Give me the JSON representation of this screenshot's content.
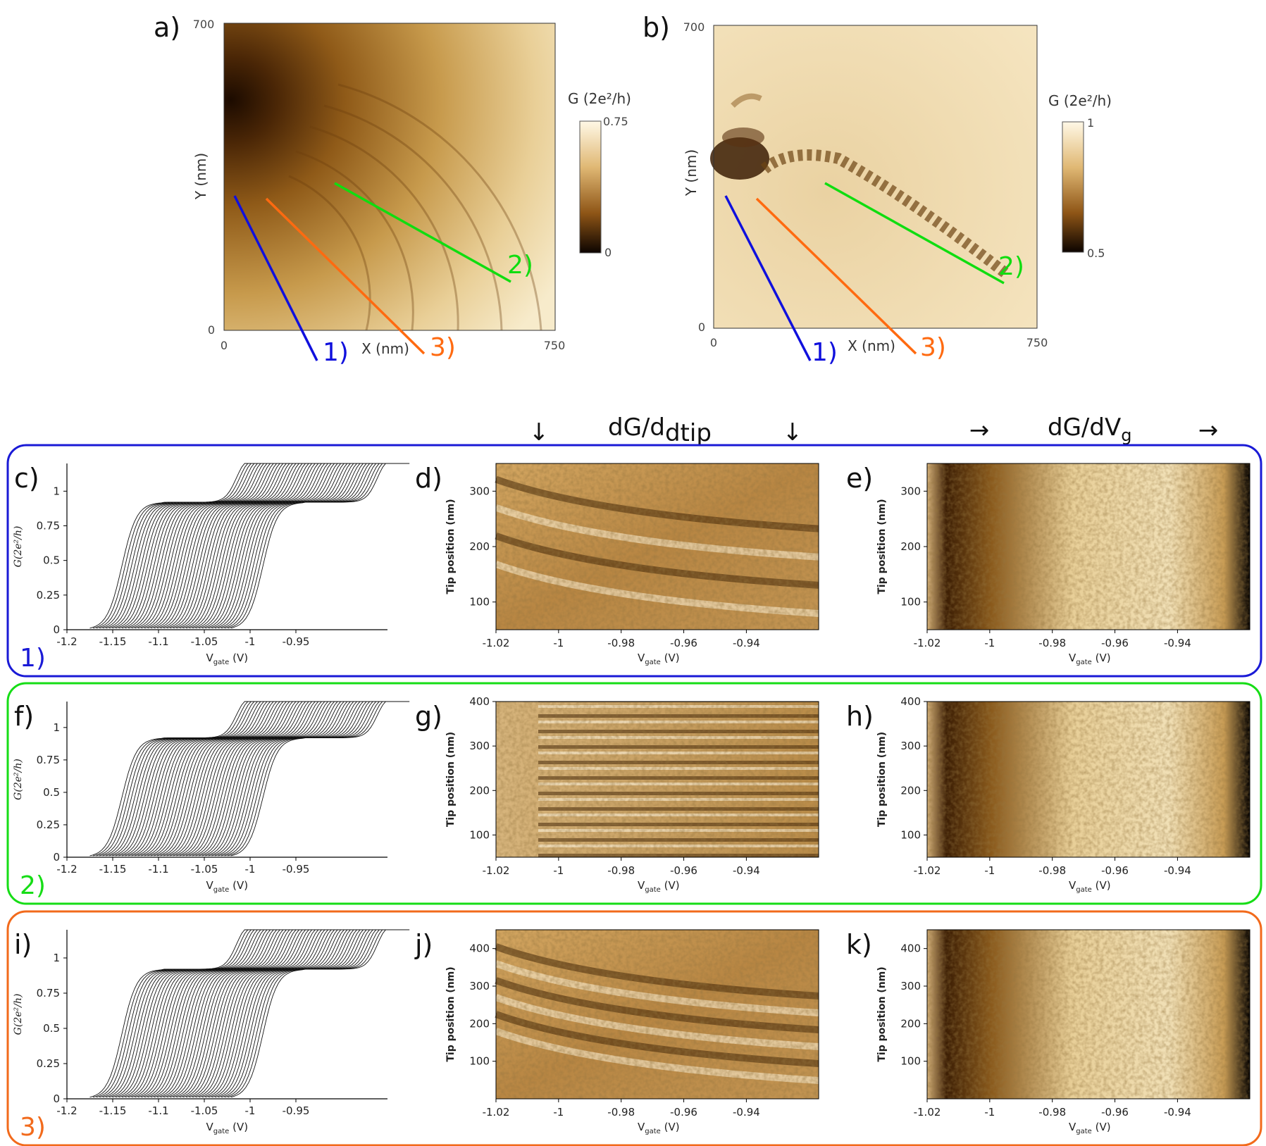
{
  "figure": {
    "map_panels": [
      {
        "letter": "a)",
        "x_label": "X (nm)",
        "y_label": "Y (nm)",
        "x_ticks": [
          "0",
          "750"
        ],
        "y_ticks": [
          "0",
          "700"
        ],
        "colorbar": {
          "title": "G (2e²/h)",
          "max": "0.75",
          "min": "0"
        },
        "lines": [
          {
            "label": "1)",
            "color": "#1010dd"
          },
          {
            "label": "2)",
            "color": "#10dd10"
          },
          {
            "label": "3)",
            "color": "#ff6a10"
          }
        ]
      },
      {
        "letter": "b)",
        "x_label": "X (nm)",
        "y_label": "Y (nm)",
        "x_ticks": [
          "0",
          "750"
        ],
        "y_ticks": [
          "0",
          "700"
        ],
        "colorbar": {
          "title": "G (2e²/h)",
          "max": "1",
          "min": "0.5"
        },
        "lines": [
          {
            "label": "1)",
            "color": "#1010dd"
          },
          {
            "label": "2)",
            "color": "#10dd10"
          },
          {
            "label": "3)",
            "color": "#ff6a10"
          }
        ]
      }
    ],
    "column_headers": {
      "derivative_tip": {
        "main": "dG/d",
        "sub": "dtip",
        "arrow": "↓"
      },
      "derivative_gate": {
        "main": "dG/dV",
        "sub": "g",
        "arrow": "→"
      }
    },
    "rows": [
      {
        "id": "1)",
        "color": "#1a1ad6",
        "curves": {
          "letter": "c)",
          "y_label": "G(2e²/h)",
          "x_label": "V",
          "x_label_sub": "gate",
          "x_unit": "(V)",
          "x_ticks": [
            "-1.2",
            "-1.15",
            "-1.1",
            "-1.05",
            "-1",
            "-0.95"
          ],
          "y_ticks": [
            "0",
            "0.25",
            "0.5",
            "0.75",
            "1"
          ]
        },
        "tip_map": {
          "letter": "d)",
          "y_label": "Tip position (nm)",
          "x_label": "V",
          "x_label_sub": "gate",
          "x_unit": "(V)",
          "x_ticks": [
            "-1.02",
            "-1",
            "-0.98",
            "-0.96",
            "-0.94"
          ],
          "y_ticks": [
            "100",
            "200",
            "300"
          ]
        },
        "gate_map": {
          "letter": "e)",
          "y_label": "Tip position (nm)",
          "x_label": "V",
          "x_label_sub": "gate",
          "x_unit": "(V)",
          "x_ticks": [
            "-1.02",
            "-1",
            "-0.98",
            "-0.96",
            "-0.94"
          ],
          "y_ticks": [
            "100",
            "200",
            "300"
          ]
        }
      },
      {
        "id": "2)",
        "color": "#16dd16",
        "curves": {
          "letter": "f)",
          "y_label": "G(2e²/h)",
          "x_label": "V",
          "x_label_sub": "gate",
          "x_unit": "(V)",
          "x_ticks": [
            "-1.2",
            "-1.15",
            "-1.1",
            "-1.05",
            "-1",
            "-0.95"
          ],
          "y_ticks": [
            "0",
            "0.25",
            "0.5",
            "0.75",
            "1"
          ]
        },
        "tip_map": {
          "letter": "g)",
          "y_label": "Tip position (nm)",
          "x_label": "V",
          "x_label_sub": "gate",
          "x_unit": "(V)",
          "x_ticks": [
            "-1.02",
            "-1",
            "-0.98",
            "-0.96",
            "-0.94"
          ],
          "y_ticks": [
            "100",
            "200",
            "300",
            "400"
          ]
        },
        "gate_map": {
          "letter": "h)",
          "y_label": "Tip position (nm)",
          "x_label": "V",
          "x_label_sub": "gate",
          "x_unit": "(V)",
          "x_ticks": [
            "-1.02",
            "-1",
            "-0.98",
            "-0.96",
            "-0.94"
          ],
          "y_ticks": [
            "100",
            "200",
            "300",
            "400"
          ]
        }
      },
      {
        "id": "3)",
        "color": "#f26a1b",
        "curves": {
          "letter": "i)",
          "y_label": "G(2e²/h)",
          "x_label": "V",
          "x_label_sub": "gate",
          "x_unit": "(V)",
          "x_ticks": [
            "-1.2",
            "-1.15",
            "-1.1",
            "-1.05",
            "-1",
            "-0.95"
          ],
          "y_ticks": [
            "0",
            "0.25",
            "0.5",
            "0.75",
            "1"
          ]
        },
        "tip_map": {
          "letter": "j)",
          "y_label": "Tip position (nm)",
          "x_label": "V",
          "x_label_sub": "gate",
          "x_unit": "(V)",
          "x_ticks": [
            "-1.02",
            "-1",
            "-0.98",
            "-0.96",
            "-0.94"
          ],
          "y_ticks": [
            "100",
            "200",
            "300",
            "400"
          ]
        },
        "gate_map": {
          "letter": "k)",
          "y_label": "Tip position (nm)",
          "x_label": "V",
          "x_label_sub": "gate",
          "x_unit": "(V)",
          "x_ticks": [
            "-1.02",
            "-1",
            "-0.98",
            "-0.96",
            "-0.94"
          ],
          "y_ticks": [
            "100",
            "200",
            "300",
            "400"
          ]
        }
      }
    ]
  }
}
